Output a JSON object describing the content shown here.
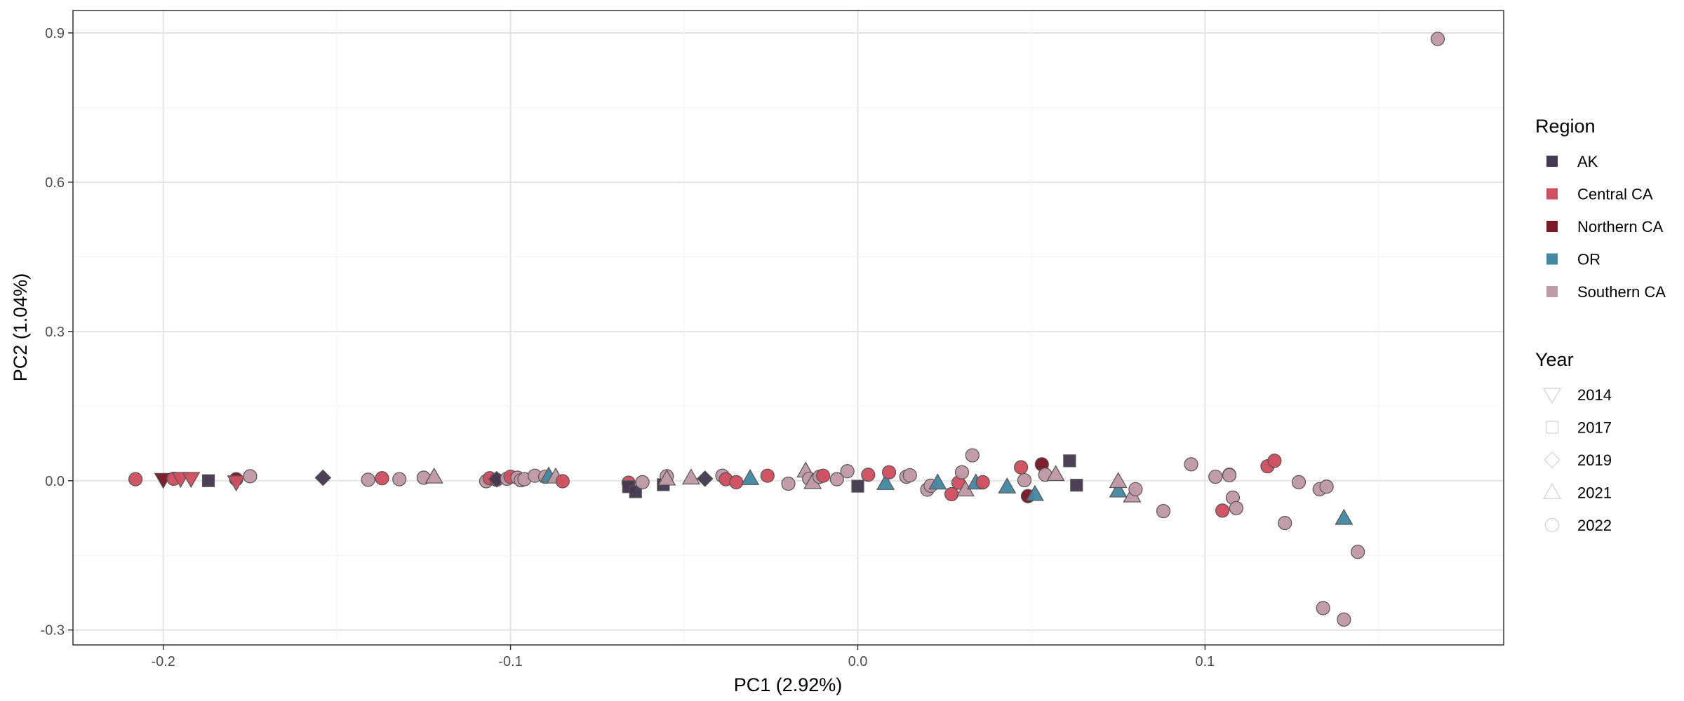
{
  "chart_data": {
    "type": "scatter",
    "title": "",
    "xlabel": "PC1 (2.92%)",
    "ylabel": "PC2 (1.04%)",
    "xlim": [
      -0.226,
      0.186
    ],
    "ylim": [
      -0.33,
      0.945
    ],
    "xticks": [
      -0.2,
      -0.1,
      0.0,
      0.1
    ],
    "xtick_labels": [
      "-0.2",
      "-0.1",
      "0.0",
      "0.1"
    ],
    "yticks": [
      -0.3,
      0.0,
      0.3,
      0.6,
      0.9
    ],
    "ytick_labels": [
      "-0.3",
      "0.0",
      "0.3",
      "0.6",
      "0.9"
    ],
    "grid": true,
    "legend_position": "right",
    "region_legend": {
      "title": "Region",
      "items": [
        {
          "label": "AK",
          "color": "#453a51"
        },
        {
          "label": "Central CA",
          "color": "#cf5060"
        },
        {
          "label": "Northern CA",
          "color": "#7a1a27"
        },
        {
          "label": "OR",
          "color": "#4588a3"
        },
        {
          "label": "Southern CA",
          "color": "#c09aa6"
        }
      ]
    },
    "year_legend": {
      "title": "Year",
      "items": [
        {
          "label": "2014",
          "shape": "triangle-down"
        },
        {
          "label": "2017",
          "shape": "square"
        },
        {
          "label": "2019",
          "shape": "diamond"
        },
        {
          "label": "2021",
          "shape": "triangle-up"
        },
        {
          "label": "2022",
          "shape": "circle"
        }
      ]
    },
    "points": [
      {
        "x": -0.208,
        "y": 0.003,
        "region": "Central CA",
        "year": "2022"
      },
      {
        "x": -0.2,
        "y": 0.002,
        "region": "Northern CA",
        "year": "2014"
      },
      {
        "x": -0.197,
        "y": 0.004,
        "region": "Central CA",
        "year": "2022"
      },
      {
        "x": -0.195,
        "y": 0.004,
        "region": "Central CA",
        "year": "2014"
      },
      {
        "x": -0.192,
        "y": 0.004,
        "region": "Central CA",
        "year": "2014"
      },
      {
        "x": -0.187,
        "y": 0.0,
        "region": "AK",
        "year": "2017"
      },
      {
        "x": -0.179,
        "y": 0.003,
        "region": "Northern CA",
        "year": "2022"
      },
      {
        "x": -0.179,
        "y": -0.003,
        "region": "Central CA",
        "year": "2014"
      },
      {
        "x": -0.175,
        "y": 0.009,
        "region": "Southern CA",
        "year": "2022"
      },
      {
        "x": -0.154,
        "y": 0.006,
        "region": "AK",
        "year": "2019"
      },
      {
        "x": -0.141,
        "y": 0.002,
        "region": "Southern CA",
        "year": "2022"
      },
      {
        "x": -0.137,
        "y": 0.005,
        "region": "Central CA",
        "year": "2022"
      },
      {
        "x": -0.132,
        "y": 0.003,
        "region": "Southern CA",
        "year": "2022"
      },
      {
        "x": -0.125,
        "y": 0.006,
        "region": "Southern CA",
        "year": "2022"
      },
      {
        "x": -0.122,
        "y": 0.008,
        "region": "Southern CA",
        "year": "2021"
      },
      {
        "x": -0.107,
        "y": -0.001,
        "region": "Southern CA",
        "year": "2022"
      },
      {
        "x": -0.106,
        "y": 0.005,
        "region": "Central CA",
        "year": "2022"
      },
      {
        "x": -0.104,
        "y": 0.002,
        "region": "Central CA",
        "year": "2022"
      },
      {
        "x": -0.104,
        "y": 0.003,
        "region": "AK",
        "year": "2019"
      },
      {
        "x": -0.101,
        "y": 0.004,
        "region": "Southern CA",
        "year": "2022"
      },
      {
        "x": -0.1,
        "y": 0.008,
        "region": "Central CA",
        "year": "2022"
      },
      {
        "x": -0.098,
        "y": 0.006,
        "region": "Southern CA",
        "year": "2022"
      },
      {
        "x": -0.097,
        "y": 0.001,
        "region": "Southern CA",
        "year": "2022"
      },
      {
        "x": -0.096,
        "y": 0.003,
        "region": "Southern CA",
        "year": "2022"
      },
      {
        "x": -0.093,
        "y": 0.01,
        "region": "Southern CA",
        "year": "2022"
      },
      {
        "x": -0.09,
        "y": 0.008,
        "region": "Southern CA",
        "year": "2022"
      },
      {
        "x": -0.089,
        "y": 0.01,
        "region": "OR",
        "year": "2021"
      },
      {
        "x": -0.087,
        "y": 0.008,
        "region": "Southern CA",
        "year": "2021"
      },
      {
        "x": -0.085,
        "y": -0.001,
        "region": "Central CA",
        "year": "2022"
      },
      {
        "x": -0.066,
        "y": -0.004,
        "region": "Central CA",
        "year": "2022"
      },
      {
        "x": -0.066,
        "y": -0.012,
        "region": "AK",
        "year": "2017"
      },
      {
        "x": -0.064,
        "y": -0.022,
        "region": "AK",
        "year": "2017"
      },
      {
        "x": -0.062,
        "y": -0.003,
        "region": "Southern CA",
        "year": "2022"
      },
      {
        "x": -0.056,
        "y": -0.008,
        "region": "AK",
        "year": "2017"
      },
      {
        "x": -0.055,
        "y": 0.009,
        "region": "Southern CA",
        "year": "2022"
      },
      {
        "x": -0.055,
        "y": 0.004,
        "region": "Southern CA",
        "year": "2021"
      },
      {
        "x": -0.048,
        "y": 0.006,
        "region": "Southern CA",
        "year": "2021"
      },
      {
        "x": -0.044,
        "y": 0.004,
        "region": "AK",
        "year": "2019"
      },
      {
        "x": -0.039,
        "y": 0.01,
        "region": "Southern CA",
        "year": "2022"
      },
      {
        "x": -0.038,
        "y": 0.003,
        "region": "Central CA",
        "year": "2022"
      },
      {
        "x": -0.035,
        "y": -0.003,
        "region": "Central CA",
        "year": "2022"
      },
      {
        "x": -0.031,
        "y": 0.005,
        "region": "OR",
        "year": "2021"
      },
      {
        "x": -0.026,
        "y": 0.01,
        "region": "Central CA",
        "year": "2022"
      },
      {
        "x": -0.02,
        "y": -0.006,
        "region": "Southern CA",
        "year": "2022"
      },
      {
        "x": -0.015,
        "y": 0.02,
        "region": "Southern CA",
        "year": "2021"
      },
      {
        "x": -0.014,
        "y": 0.004,
        "region": "Southern CA",
        "year": "2022"
      },
      {
        "x": -0.013,
        "y": -0.003,
        "region": "Southern CA",
        "year": "2021"
      },
      {
        "x": -0.011,
        "y": 0.008,
        "region": "Southern CA",
        "year": "2022"
      },
      {
        "x": -0.01,
        "y": 0.01,
        "region": "Central CA",
        "year": "2022"
      },
      {
        "x": -0.006,
        "y": 0.003,
        "region": "Southern CA",
        "year": "2022"
      },
      {
        "x": -0.003,
        "y": 0.019,
        "region": "Southern CA",
        "year": "2022"
      },
      {
        "x": 0.0,
        "y": -0.011,
        "region": "AK",
        "year": "2017"
      },
      {
        "x": 0.003,
        "y": 0.012,
        "region": "Central CA",
        "year": "2022"
      },
      {
        "x": 0.008,
        "y": -0.005,
        "region": "OR",
        "year": "2021"
      },
      {
        "x": 0.009,
        "y": 0.017,
        "region": "Central CA",
        "year": "2022"
      },
      {
        "x": 0.014,
        "y": 0.008,
        "region": "Southern CA",
        "year": "2022"
      },
      {
        "x": 0.015,
        "y": 0.011,
        "region": "Southern CA",
        "year": "2022"
      },
      {
        "x": 0.02,
        "y": -0.018,
        "region": "Southern CA",
        "year": "2022"
      },
      {
        "x": 0.021,
        "y": -0.01,
        "region": "Southern CA",
        "year": "2022"
      },
      {
        "x": 0.023,
        "y": -0.004,
        "region": "OR",
        "year": "2021"
      },
      {
        "x": 0.027,
        "y": -0.027,
        "region": "Central CA",
        "year": "2022"
      },
      {
        "x": 0.029,
        "y": -0.004,
        "region": "Central CA",
        "year": "2022"
      },
      {
        "x": 0.03,
        "y": 0.017,
        "region": "Southern CA",
        "year": "2022"
      },
      {
        "x": 0.031,
        "y": -0.018,
        "region": "Southern CA",
        "year": "2021"
      },
      {
        "x": 0.033,
        "y": 0.051,
        "region": "Southern CA",
        "year": "2022"
      },
      {
        "x": 0.034,
        "y": -0.004,
        "region": "OR",
        "year": "2021"
      },
      {
        "x": 0.036,
        "y": -0.003,
        "region": "Central CA",
        "year": "2022"
      },
      {
        "x": 0.043,
        "y": -0.012,
        "region": "OR",
        "year": "2021"
      },
      {
        "x": 0.047,
        "y": 0.027,
        "region": "Central CA",
        "year": "2022"
      },
      {
        "x": 0.048,
        "y": 0.001,
        "region": "Southern CA",
        "year": "2022"
      },
      {
        "x": 0.049,
        "y": -0.031,
        "region": "Northern CA",
        "year": "2022"
      },
      {
        "x": 0.051,
        "y": -0.027,
        "region": "OR",
        "year": "2021"
      },
      {
        "x": 0.053,
        "y": 0.033,
        "region": "Northern CA",
        "year": "2022"
      },
      {
        "x": 0.054,
        "y": 0.012,
        "region": "Southern CA",
        "year": "2022"
      },
      {
        "x": 0.057,
        "y": 0.013,
        "region": "Southern CA",
        "year": "2021"
      },
      {
        "x": 0.061,
        "y": 0.04,
        "region": "AK",
        "year": "2017"
      },
      {
        "x": 0.063,
        "y": -0.009,
        "region": "AK",
        "year": "2017"
      },
      {
        "x": 0.075,
        "y": -0.02,
        "region": "OR",
        "year": "2021"
      },
      {
        "x": 0.075,
        "y": -0.001,
        "region": "Southern CA",
        "year": "2021"
      },
      {
        "x": 0.079,
        "y": -0.03,
        "region": "Southern CA",
        "year": "2021"
      },
      {
        "x": 0.08,
        "y": -0.017,
        "region": "Southern CA",
        "year": "2022"
      },
      {
        "x": 0.088,
        "y": -0.061,
        "region": "Southern CA",
        "year": "2022"
      },
      {
        "x": 0.096,
        "y": 0.033,
        "region": "Southern CA",
        "year": "2022"
      },
      {
        "x": 0.103,
        "y": 0.008,
        "region": "Southern CA",
        "year": "2022"
      },
      {
        "x": 0.105,
        "y": -0.06,
        "region": "Central CA",
        "year": "2022"
      },
      {
        "x": 0.107,
        "y": 0.012,
        "region": "Southern CA",
        "year": "2022"
      },
      {
        "x": 0.107,
        "y": 0.011,
        "region": "Southern CA",
        "year": "2022"
      },
      {
        "x": 0.108,
        "y": -0.034,
        "region": "Southern CA",
        "year": "2022"
      },
      {
        "x": 0.109,
        "y": -0.055,
        "region": "Southern CA",
        "year": "2022"
      },
      {
        "x": 0.118,
        "y": 0.029,
        "region": "Central CA",
        "year": "2022"
      },
      {
        "x": 0.12,
        "y": 0.04,
        "region": "Central CA",
        "year": "2022"
      },
      {
        "x": 0.123,
        "y": -0.085,
        "region": "Southern CA",
        "year": "2022"
      },
      {
        "x": 0.127,
        "y": -0.003,
        "region": "Southern CA",
        "year": "2022"
      },
      {
        "x": 0.133,
        "y": -0.017,
        "region": "Southern CA",
        "year": "2022"
      },
      {
        "x": 0.134,
        "y": -0.256,
        "region": "Southern CA",
        "year": "2022"
      },
      {
        "x": 0.135,
        "y": -0.012,
        "region": "Southern CA",
        "year": "2022"
      },
      {
        "x": 0.14,
        "y": -0.279,
        "region": "Southern CA",
        "year": "2022"
      },
      {
        "x": 0.14,
        "y": -0.075,
        "region": "OR",
        "year": "2021"
      },
      {
        "x": 0.144,
        "y": -0.143,
        "region": "Southern CA",
        "year": "2022"
      },
      {
        "x": 0.167,
        "y": 0.888,
        "region": "Southern CA",
        "year": "2022"
      }
    ]
  }
}
